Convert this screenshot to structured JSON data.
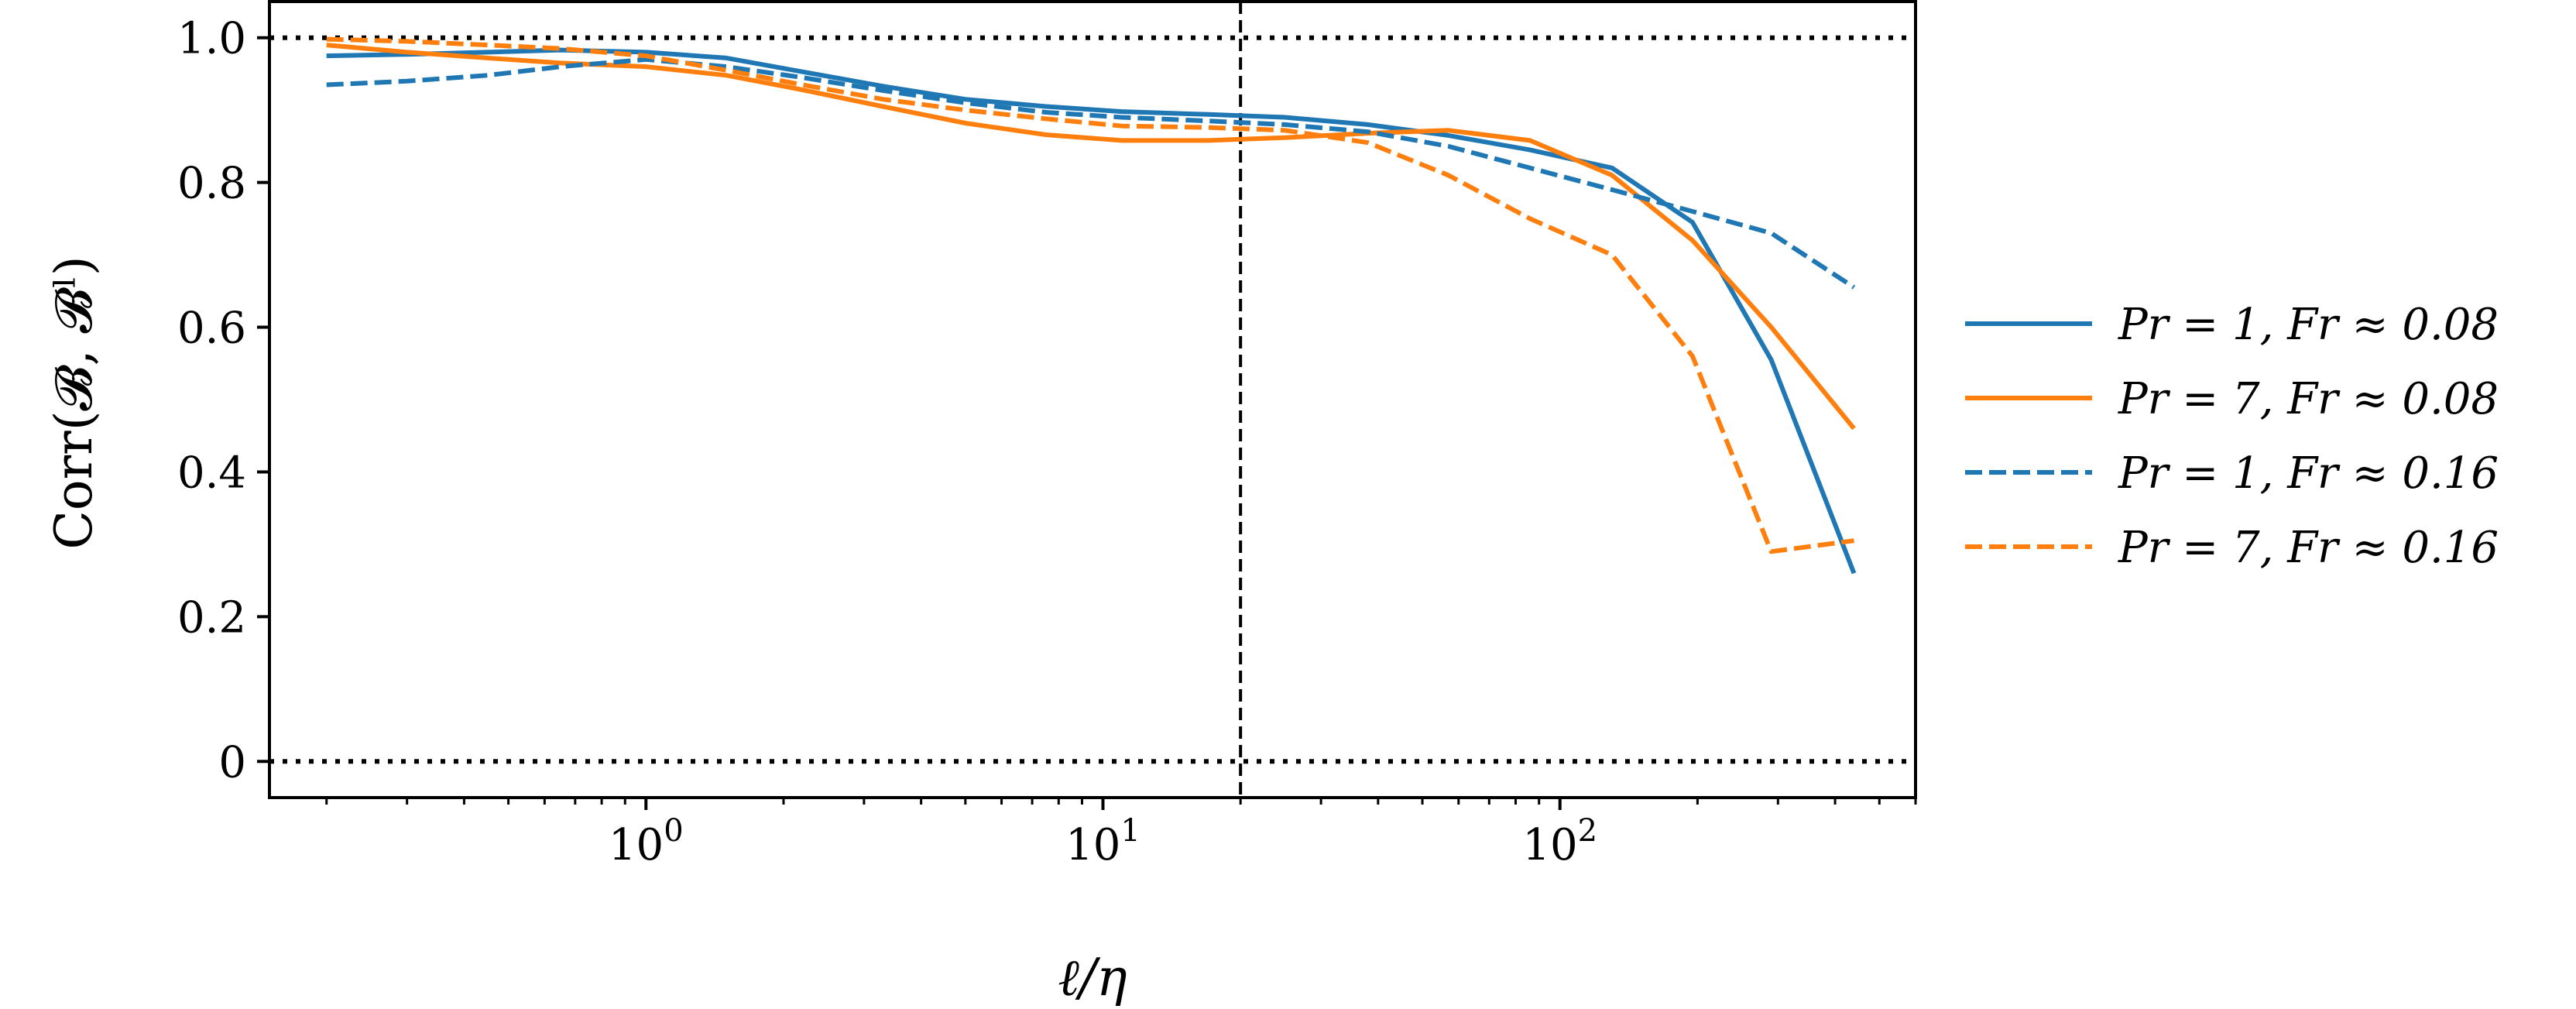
{
  "chart_data": {
    "type": "line",
    "title": "",
    "xlabel": "ℓ/η",
    "ylabel": "Corr(𝓑, 𝓑ˡ)",
    "xscale": "log",
    "xlim": [
      0.15,
      600
    ],
    "ylim": [
      -0.05,
      1.05
    ],
    "yticks": [
      {
        "value": 0,
        "label": "0"
      },
      {
        "value": 0.2,
        "label": "0.2"
      },
      {
        "value": 0.4,
        "label": "0.4"
      },
      {
        "value": 0.6,
        "label": "0.6"
      },
      {
        "value": 0.8,
        "label": "0.8"
      },
      {
        "value": 1.0,
        "label": "1.0"
      }
    ],
    "xticks": [
      {
        "value": 1,
        "base": "10",
        "exp": "0"
      },
      {
        "value": 10,
        "base": "10",
        "exp": "1"
      },
      {
        "value": 100,
        "base": "10",
        "exp": "2"
      }
    ],
    "hlines": [
      0,
      1.0
    ],
    "vline": 20,
    "grid": false,
    "legend_position": "right",
    "series": [
      {
        "name": "Pr = 1, Fr ≈ 0.08",
        "color": "#1f77b4",
        "style": "solid",
        "x": [
          0.2,
          0.3,
          0.45,
          0.65,
          1,
          1.5,
          2.2,
          3.3,
          5,
          7.5,
          11,
          17,
          25,
          38,
          57,
          86,
          130,
          195,
          290,
          440
        ],
        "y": [
          0.975,
          0.977,
          0.98,
          0.983,
          0.98,
          0.972,
          0.953,
          0.933,
          0.915,
          0.905,
          0.898,
          0.894,
          0.89,
          0.88,
          0.865,
          0.845,
          0.82,
          0.745,
          0.555,
          0.26
        ]
      },
      {
        "name": "Pr = 7, Fr ≈ 0.08",
        "color": "#ff7f0e",
        "style": "solid",
        "x": [
          0.2,
          0.3,
          0.45,
          0.65,
          1,
          1.5,
          2.2,
          3.3,
          5,
          7.5,
          11,
          17,
          25,
          38,
          57,
          86,
          130,
          195,
          290,
          440
        ],
        "y": [
          0.99,
          0.98,
          0.972,
          0.965,
          0.96,
          0.948,
          0.928,
          0.905,
          0.882,
          0.866,
          0.858,
          0.858,
          0.862,
          0.868,
          0.872,
          0.858,
          0.81,
          0.72,
          0.6,
          0.46
        ]
      },
      {
        "name": "Pr = 1, Fr ≈ 0.16",
        "color": "#1f77b4",
        "style": "dashed",
        "x": [
          0.2,
          0.3,
          0.45,
          0.65,
          1,
          1.5,
          2.2,
          3.3,
          5,
          7.5,
          11,
          17,
          25,
          38,
          57,
          86,
          130,
          195,
          290,
          440
        ],
        "y": [
          0.935,
          0.94,
          0.948,
          0.96,
          0.97,
          0.96,
          0.945,
          0.927,
          0.91,
          0.897,
          0.89,
          0.885,
          0.88,
          0.87,
          0.85,
          0.82,
          0.79,
          0.76,
          0.73,
          0.655
        ]
      },
      {
        "name": "Pr = 7, Fr ≈ 0.16",
        "color": "#ff7f0e",
        "style": "dashed",
        "x": [
          0.2,
          0.3,
          0.45,
          0.65,
          1,
          1.5,
          2.2,
          3.3,
          5,
          7.5,
          11,
          17,
          25,
          38,
          57,
          86,
          130,
          195,
          290,
          440
        ],
        "y": [
          0.998,
          0.995,
          0.99,
          0.985,
          0.975,
          0.955,
          0.935,
          0.915,
          0.9,
          0.888,
          0.878,
          0.876,
          0.872,
          0.855,
          0.81,
          0.75,
          0.7,
          0.56,
          0.29,
          0.305
        ]
      }
    ]
  }
}
